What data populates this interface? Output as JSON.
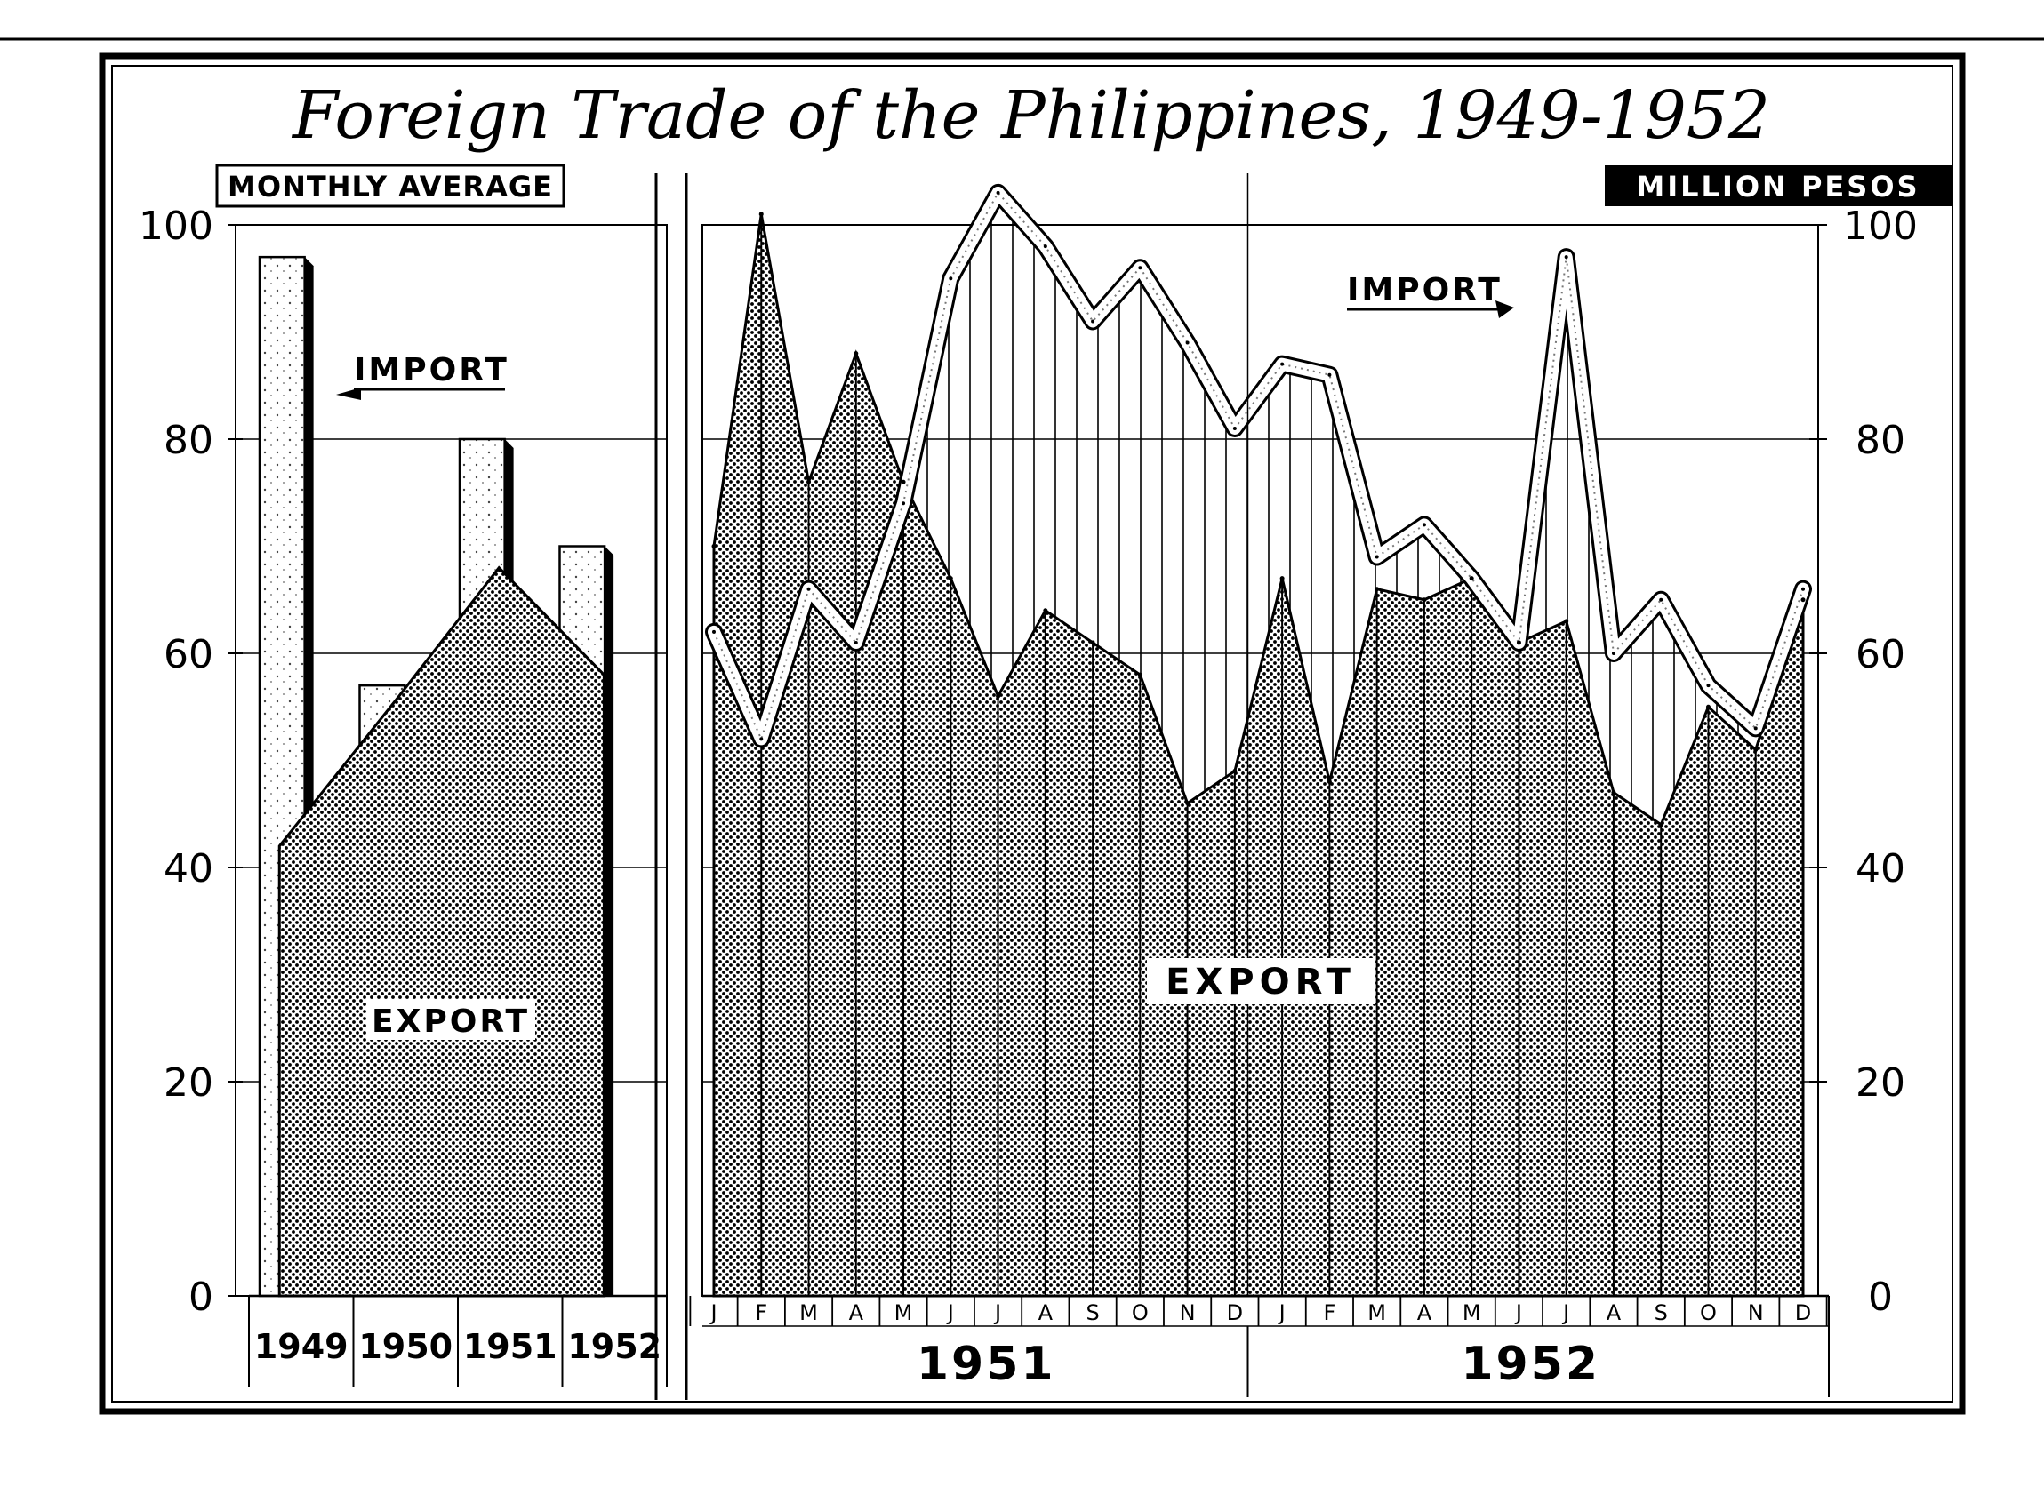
{
  "title": "Foreign Trade of the Philippines, 1949-1952",
  "header_left": "MONTHLY AVERAGE",
  "header_right": "MILLION PESOS",
  "labels": {
    "left_import": "IMPORT",
    "left_export": "EXPORT",
    "right_import": "IMPORT",
    "right_export": "EXPORT"
  },
  "colors": {
    "ink": "#000000",
    "paper": "#ffffff",
    "dots": "#000000"
  },
  "chart_data": [
    {
      "type": "bar",
      "subtitle": "MONTHLY AVERAGE",
      "categories": [
        "1949",
        "1950",
        "1951",
        "1952"
      ],
      "series": [
        {
          "name": "IMPORT",
          "values": [
            97,
            57,
            80,
            70
          ]
        },
        {
          "name": "EXPORT",
          "values": [
            42,
            56,
            68,
            58
          ]
        }
      ],
      "ylabel": "MILLION PESOS",
      "ylim": [
        0,
        100
      ],
      "yticks": [
        "0",
        "20",
        "40",
        "60",
        "80",
        "100"
      ]
    },
    {
      "type": "area",
      "x_months": [
        "J",
        "F",
        "M",
        "A",
        "M",
        "J",
        "J",
        "A",
        "S",
        "O",
        "N",
        "D",
        "J",
        "F",
        "M",
        "A",
        "M",
        "J",
        "J",
        "A",
        "S",
        "O",
        "N",
        "D"
      ],
      "x_years": [
        "1951",
        "1952"
      ],
      "series": [
        {
          "name": "IMPORT",
          "type": "line",
          "values": [
            62,
            52,
            66,
            61,
            74,
            95,
            103,
            98,
            91,
            96,
            89,
            81,
            87,
            86,
            69,
            72,
            67,
            61,
            97,
            60,
            65,
            57,
            53,
            66
          ]
        },
        {
          "name": "EXPORT",
          "type": "area",
          "values": [
            70,
            101,
            76,
            88,
            76,
            67,
            56,
            64,
            61,
            58,
            46,
            49,
            67,
            48,
            66,
            65,
            67,
            61,
            63,
            47,
            44,
            55,
            51,
            65
          ]
        }
      ],
      "ylabel": "MILLION PESOS",
      "ylim": [
        0,
        100
      ],
      "yticks": [
        "0",
        "20",
        "40",
        "60",
        "80",
        "100"
      ]
    }
  ]
}
